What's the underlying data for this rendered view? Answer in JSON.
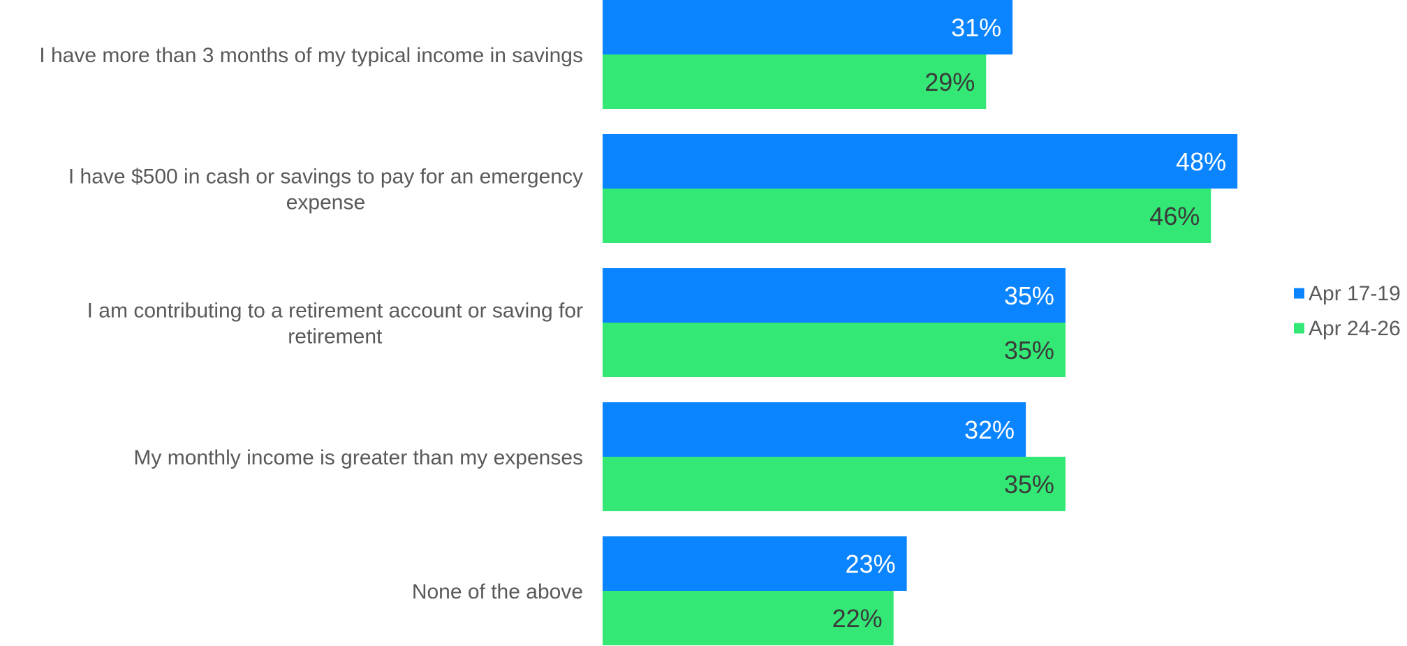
{
  "chart_data": {
    "type": "bar",
    "orientation": "horizontal",
    "title": "",
    "xlabel": "",
    "ylabel": "",
    "categories": [
      [
        "I have more than 3 months of my typical income in savings"
      ],
      [
        "I have $500 in cash or savings to pay for an emergency",
        "expense"
      ],
      [
        "I am contributing  to a retirement account or saving for",
        "retirement"
      ],
      [
        "My monthly income is greater than my expenses"
      ],
      [
        "None of the above"
      ]
    ],
    "series": [
      {
        "name": "Apr 17-19",
        "color": "#0A84FF",
        "label_color": "#FFFFFF",
        "values": [
          31,
          48,
          35,
          32,
          23
        ],
        "labels": [
          "31%",
          "48%",
          "35%",
          "32%",
          "23%"
        ]
      },
      {
        "name": "Apr 24-26",
        "color": "#33E875",
        "label_color": "#3A3A3A",
        "values": [
          29,
          46,
          35,
          35,
          22
        ],
        "labels": [
          "29%",
          "46%",
          "35%",
          "35%",
          "22%"
        ]
      }
    ],
    "xlim": [
      0,
      60
    ],
    "grid": false,
    "legend": "right"
  }
}
